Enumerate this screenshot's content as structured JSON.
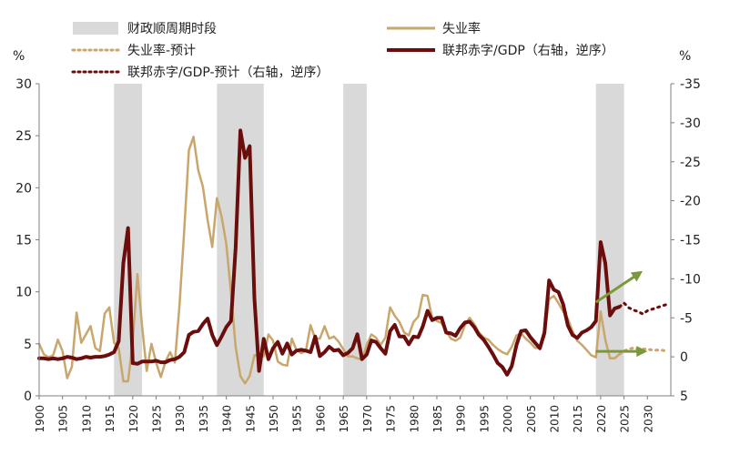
{
  "chart_data": {
    "type": "line",
    "left_unit": "%",
    "right_unit": "%",
    "left_axis": {
      "min": 0,
      "max": 30,
      "ticks": [
        0,
        5,
        10,
        15,
        20,
        25,
        30
      ]
    },
    "right_axis": {
      "min": 5,
      "max": -35,
      "reversed": true,
      "ticks": [
        5,
        0,
        -5,
        -10,
        -15,
        -20,
        -25,
        -30,
        -35
      ],
      "tick_labels": [
        "5",
        "0",
        "-5",
        "-10",
        "-15",
        "-20",
        "-25",
        "-30",
        "-35"
      ]
    },
    "x_axis": {
      "min": 1900,
      "max": 2035,
      "ticks": [
        1900,
        1905,
        1910,
        1915,
        1920,
        1925,
        1930,
        1935,
        1940,
        1945,
        1950,
        1955,
        1960,
        1965,
        1970,
        1975,
        1980,
        1985,
        1990,
        1995,
        2000,
        2005,
        2010,
        2015,
        2020,
        2025,
        2030
      ]
    },
    "shaded_periods": [
      [
        1916,
        1922
      ],
      [
        1938,
        1948
      ],
      [
        1965,
        1970
      ],
      [
        2019,
        2025
      ]
    ],
    "legend": {
      "shade": "财政顺周期时段",
      "unemp": "失业率",
      "unemp_fc": "失业率-预计",
      "deficit": "联邦赤字/GDP（右轴，逆序）",
      "deficit_fc": "联邦赤字/GDP-预计（右轴，逆序）"
    },
    "series": [
      {
        "name": "失业率",
        "axis": "left",
        "color": "#c9a66b",
        "x": [
          1900,
          1901,
          1902,
          1903,
          1904,
          1905,
          1906,
          1907,
          1908,
          1909,
          1910,
          1911,
          1912,
          1913,
          1914,
          1915,
          1916,
          1917,
          1918,
          1919,
          1920,
          1921,
          1922,
          1923,
          1924,
          1925,
          1926,
          1927,
          1928,
          1929,
          1930,
          1931,
          1932,
          1933,
          1934,
          1935,
          1936,
          1937,
          1938,
          1939,
          1940,
          1941,
          1942,
          1943,
          1944,
          1945,
          1946,
          1947,
          1948,
          1949,
          1950,
          1951,
          1952,
          1953,
          1954,
          1955,
          1956,
          1957,
          1958,
          1959,
          1960,
          1961,
          1962,
          1963,
          1964,
          1965,
          1966,
          1967,
          1968,
          1969,
          1970,
          1971,
          1972,
          1973,
          1974,
          1975,
          1976,
          1977,
          1978,
          1979,
          1980,
          1981,
          1982,
          1983,
          1984,
          1985,
          1986,
          1987,
          1988,
          1989,
          1990,
          1991,
          1992,
          1993,
          1994,
          1995,
          1996,
          1997,
          1998,
          1999,
          2000,
          2001,
          2002,
          2003,
          2004,
          2005,
          2006,
          2007,
          2008,
          2009,
          2010,
          2011,
          2012,
          2013,
          2014,
          2015,
          2016,
          2017,
          2018,
          2019,
          2020,
          2021,
          2022,
          2023,
          2024
        ],
        "values": [
          5.0,
          4.0,
          3.7,
          3.9,
          5.4,
          4.3,
          1.7,
          2.8,
          8.0,
          5.1,
          5.9,
          6.7,
          4.6,
          4.3,
          7.9,
          8.5,
          5.1,
          4.6,
          1.4,
          1.4,
          5.2,
          11.7,
          6.7,
          2.4,
          5.0,
          3.2,
          1.8,
          3.3,
          4.2,
          3.2,
          8.7,
          15.9,
          23.6,
          24.9,
          21.7,
          20.1,
          16.9,
          14.3,
          19.0,
          17.2,
          14.6,
          9.9,
          4.7,
          1.9,
          1.2,
          1.9,
          3.9,
          3.9,
          3.8,
          5.9,
          5.3,
          3.3,
          3.0,
          2.9,
          5.5,
          4.4,
          4.1,
          4.3,
          6.8,
          5.5,
          5.5,
          6.7,
          5.5,
          5.7,
          5.2,
          4.5,
          3.8,
          3.8,
          3.6,
          3.5,
          4.9,
          5.9,
          5.6,
          4.9,
          5.6,
          8.5,
          7.7,
          7.1,
          6.1,
          5.8,
          7.1,
          7.6,
          9.7,
          9.6,
          7.5,
          7.2,
          7.0,
          6.2,
          5.5,
          5.3,
          5.6,
          6.8,
          7.5,
          6.9,
          6.1,
          5.6,
          5.4,
          4.9,
          4.5,
          4.2,
          4.0,
          4.7,
          5.8,
          6.0,
          5.5,
          5.1,
          4.6,
          4.6,
          5.8,
          9.3,
          9.6,
          8.9,
          8.1,
          7.4,
          6.2,
          5.3,
          4.9,
          4.4,
          3.9,
          3.7,
          8.1,
          5.4,
          3.6,
          3.6,
          4.0
        ]
      },
      {
        "name": "失业率-预计",
        "axis": "left",
        "color": "#c9a66b",
        "x": [
          2024,
          2025,
          2026,
          2027,
          2028,
          2029,
          2030,
          2031,
          2032,
          2033,
          2034
        ],
        "values": [
          4.0,
          4.3,
          4.5,
          4.6,
          4.5,
          4.5,
          4.5,
          4.4,
          4.4,
          4.4,
          4.3
        ]
      },
      {
        "name": "联邦赤字/GDP（右轴，逆序）",
        "axis": "right",
        "color": "#6b0d0d",
        "x": [
          1900,
          1901,
          1902,
          1903,
          1904,
          1905,
          1906,
          1907,
          1908,
          1909,
          1910,
          1911,
          1912,
          1913,
          1914,
          1915,
          1916,
          1917,
          1918,
          1919,
          1920,
          1921,
          1922,
          1923,
          1924,
          1925,
          1926,
          1927,
          1928,
          1929,
          1930,
          1931,
          1932,
          1933,
          1934,
          1935,
          1936,
          1937,
          1938,
          1939,
          1940,
          1941,
          1942,
          1943,
          1944,
          1945,
          1946,
          1947,
          1948,
          1949,
          1950,
          1951,
          1952,
          1953,
          1954,
          1955,
          1956,
          1957,
          1958,
          1959,
          1960,
          1961,
          1962,
          1963,
          1964,
          1965,
          1966,
          1967,
          1968,
          1969,
          1970,
          1971,
          1972,
          1973,
          1974,
          1975,
          1976,
          1977,
          1978,
          1979,
          1980,
          1981,
          1982,
          1983,
          1984,
          1985,
          1986,
          1987,
          1988,
          1989,
          1990,
          1991,
          1992,
          1993,
          1994,
          1995,
          1996,
          1997,
          1998,
          1999,
          2000,
          2001,
          2002,
          2003,
          2004,
          2005,
          2006,
          2007,
          2008,
          2009,
          2010,
          2011,
          2012,
          2013,
          2014,
          2015,
          2016,
          2017,
          2018,
          2019,
          2020,
          2021,
          2022,
          2023,
          2024
        ],
        "values": [
          0.2,
          0.2,
          0.3,
          0.2,
          0.3,
          0.2,
          0.0,
          0.1,
          0.3,
          0.2,
          0.0,
          0.1,
          0.0,
          0.0,
          -0.1,
          -0.3,
          -0.6,
          -2.0,
          -12.0,
          -16.5,
          0.8,
          0.9,
          0.6,
          0.6,
          0.6,
          0.5,
          0.7,
          0.7,
          0.4,
          0.3,
          0.0,
          -0.6,
          -2.8,
          -3.2,
          -3.3,
          -4.2,
          -4.9,
          -2.8,
          -1.5,
          -2.6,
          -3.8,
          -4.6,
          -14.0,
          -29.0,
          -25.5,
          -27.0,
          -7.5,
          1.8,
          -2.3,
          0.3,
          -1.1,
          -1.9,
          -0.4,
          -1.7,
          -0.3,
          -0.8,
          -0.9,
          -0.8,
          -0.6,
          -2.6,
          -0.1,
          -0.6,
          -1.3,
          -0.8,
          -0.9,
          -0.2,
          -0.5,
          -1.1,
          -2.9,
          0.3,
          -0.3,
          -2.1,
          -1.9,
          -1.1,
          -0.4,
          -3.3,
          -4.1,
          -2.6,
          -2.6,
          -1.6,
          -2.6,
          -2.5,
          -3.9,
          -5.9,
          -4.7,
          -5.0,
          -5.0,
          -3.1,
          -3.0,
          -2.7,
          -3.7,
          -4.4,
          -4.5,
          -3.8,
          -2.8,
          -2.2,
          -1.3,
          -0.3,
          0.8,
          1.3,
          2.3,
          1.2,
          -1.5,
          -3.3,
          -3.4,
          -2.5,
          -1.8,
          -1.1,
          -3.1,
          -9.8,
          -8.6,
          -8.3,
          -6.7,
          -4.0,
          -2.8,
          -2.4,
          -3.1,
          -3.4,
          -3.8,
          -4.6,
          -14.7,
          -12.0,
          -5.3,
          -6.2,
          -6.4
        ]
      },
      {
        "name": "联邦赤字/GDP-预计（右轴，逆序）",
        "axis": "right",
        "color": "#6b0d0d",
        "x": [
          2024,
          2025,
          2026,
          2027,
          2028,
          2029,
          2030,
          2031,
          2032,
          2033,
          2034
        ],
        "values": [
          -6.4,
          -6.9,
          -6.3,
          -6.0,
          -5.8,
          -5.5,
          -5.9,
          -6.1,
          -6.3,
          -6.5,
          -6.7
        ]
      }
    ],
    "trend_arrows": [
      {
        "x1": 2019,
        "y1": -7,
        "x2": 2029,
        "y2": -11
      },
      {
        "x1": 2019,
        "y1": -0.7,
        "x2": 2030,
        "y2": -0.7
      }
    ],
    "colors": {
      "shade": "#d9d9d9",
      "arrow": "#7a9a3a",
      "axis": "#7f7f7f"
    }
  }
}
